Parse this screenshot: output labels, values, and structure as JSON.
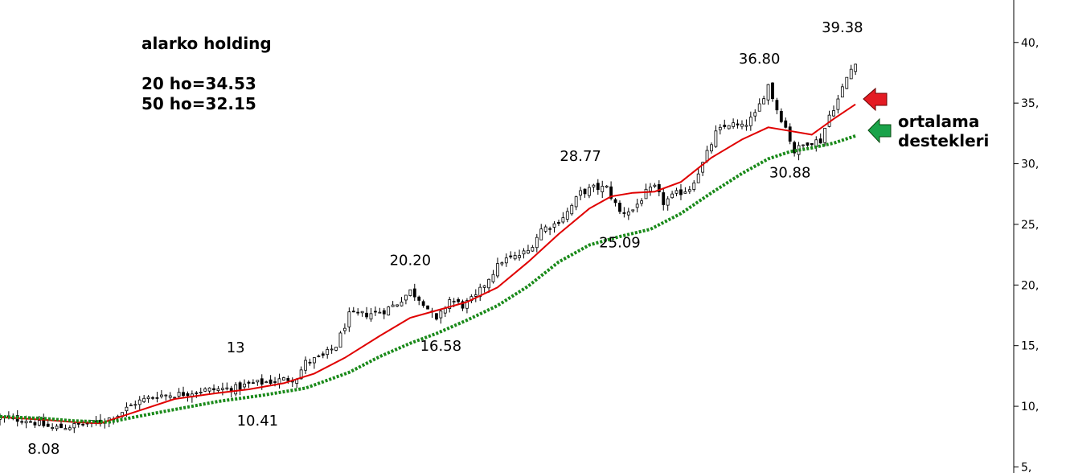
{
  "chart_data": {
    "type": "candlestick",
    "annotations": {
      "title": "alarko holding",
      "ma20": "20 ho=34.53",
      "ma50": "50 ho=32.15",
      "support_label_line1": "ortalama",
      "support_label_line2": "destekleri"
    },
    "price_labels": [
      {
        "text": "8.08",
        "x": 10,
        "y": 8.08
      },
      {
        "text": "10.41",
        "x": 59,
        "y": 10.41
      },
      {
        "text": "13",
        "x": 54,
        "y": 13
      },
      {
        "text": "20.20",
        "x": 94,
        "y": 20.2
      },
      {
        "text": "16.58",
        "x": 101,
        "y": 16.58
      },
      {
        "text": "28.77",
        "x": 133,
        "y": 28.77
      },
      {
        "text": "25.09",
        "x": 142,
        "y": 25.09
      },
      {
        "text": "36.80",
        "x": 174,
        "y": 36.8
      },
      {
        "text": "30.88",
        "x": 181,
        "y": 30.88
      },
      {
        "text": "39.38",
        "x": 193,
        "y": 39.38
      }
    ],
    "yaxis": {
      "ticks": [
        "5,",
        "10,",
        "15,",
        "20,",
        "25,",
        "30,",
        "35,",
        "40,"
      ],
      "ylim": [
        4.5,
        43.5
      ],
      "position": "right"
    },
    "xlim": [
      0,
      198
    ],
    "series": [
      {
        "kind": "sma",
        "color": "#e00000",
        "points": [
          [
            0,
            9.1
          ],
          [
            10,
            8.9
          ],
          [
            17,
            8.7
          ],
          [
            23,
            8.6
          ],
          [
            29,
            9.3
          ],
          [
            40,
            10.6
          ],
          [
            50,
            11.1
          ],
          [
            57,
            11.4
          ],
          [
            65,
            11.9
          ],
          [
            72,
            12.7
          ],
          [
            79,
            14.0
          ],
          [
            87,
            15.8
          ],
          [
            94,
            17.3
          ],
          [
            100,
            17.9
          ],
          [
            107,
            18.6
          ],
          [
            114,
            19.8
          ],
          [
            121,
            21.9
          ],
          [
            128,
            24.2
          ],
          [
            135,
            26.3
          ],
          [
            140,
            27.3
          ],
          [
            145,
            27.6
          ],
          [
            150,
            27.7
          ],
          [
            156,
            28.5
          ],
          [
            163,
            30.5
          ],
          [
            170,
            32.0
          ],
          [
            176,
            33.0
          ],
          [
            181,
            32.7
          ],
          [
            186,
            32.4
          ],
          [
            191,
            33.7
          ],
          [
            196,
            34.9
          ]
        ]
      },
      {
        "kind": "sma",
        "color": "#1a8a1a",
        "dashed": true,
        "points": [
          [
            0,
            9.15
          ],
          [
            10,
            9.0
          ],
          [
            17,
            8.8
          ],
          [
            25,
            8.7
          ],
          [
            35,
            9.4
          ],
          [
            50,
            10.4
          ],
          [
            60,
            10.9
          ],
          [
            70,
            11.5
          ],
          [
            80,
            12.8
          ],
          [
            87,
            14.1
          ],
          [
            94,
            15.2
          ],
          [
            100,
            16.0
          ],
          [
            107,
            17.1
          ],
          [
            114,
            18.3
          ],
          [
            121,
            19.9
          ],
          [
            128,
            21.9
          ],
          [
            135,
            23.3
          ],
          [
            142,
            24.0
          ],
          [
            149,
            24.6
          ],
          [
            156,
            25.9
          ],
          [
            163,
            27.6
          ],
          [
            170,
            29.2
          ],
          [
            176,
            30.4
          ],
          [
            181,
            31.0
          ],
          [
            186,
            31.3
          ],
          [
            191,
            31.7
          ],
          [
            196,
            32.3
          ]
        ]
      }
    ]
  },
  "arrows": {
    "red": "#e41b23",
    "green": "#1aa34a"
  },
  "colors": {
    "ma20": "#e00000",
    "ma50": "#1a8a1a",
    "candle": "#000000"
  }
}
